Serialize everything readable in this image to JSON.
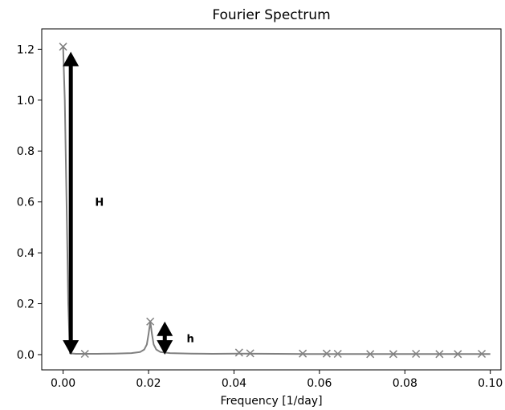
{
  "chart_data": {
    "type": "line",
    "title": "Fourier Spectrum",
    "xlabel": "Frequency [1/day]",
    "ylabel": "",
    "xlim": [
      -0.005,
      0.1025
    ],
    "ylim": [
      -0.06,
      1.28
    ],
    "x_ticks": [
      0.0,
      0.02,
      0.04,
      0.06,
      0.08,
      0.1
    ],
    "x_tick_labels": [
      "0.00",
      "0.02",
      "0.04",
      "0.06",
      "0.08",
      "0.10"
    ],
    "y_ticks": [
      0.0,
      0.2,
      0.4,
      0.6,
      0.8,
      1.0,
      1.2
    ],
    "y_tick_labels": [
      "0.0",
      "0.2",
      "0.4",
      "0.6",
      "0.8",
      "1.0",
      "1.2"
    ],
    "grid": false,
    "line_color": "#808080",
    "arrow_color": "#000000",
    "series": [
      {
        "values": [
          [
            0.0,
            1.21
          ],
          [
            0.0004,
            1.0
          ],
          [
            0.0008,
            0.6
          ],
          [
            0.0012,
            0.2
          ],
          [
            0.0016,
            0.005
          ],
          [
            0.003,
            0.003
          ],
          [
            0.0052,
            0.003
          ],
          [
            0.008,
            0.003
          ],
          [
            0.012,
            0.004
          ],
          [
            0.016,
            0.006
          ],
          [
            0.018,
            0.01
          ],
          [
            0.019,
            0.02
          ],
          [
            0.0196,
            0.04
          ],
          [
            0.02,
            0.08
          ],
          [
            0.0204,
            0.13
          ],
          [
            0.0208,
            0.08
          ],
          [
            0.0212,
            0.04
          ],
          [
            0.0218,
            0.02
          ],
          [
            0.0228,
            0.01
          ],
          [
            0.025,
            0.006
          ],
          [
            0.03,
            0.004
          ],
          [
            0.035,
            0.003
          ],
          [
            0.041,
            0.004
          ],
          [
            0.05,
            0.003
          ],
          [
            0.06,
            0.002
          ],
          [
            0.07,
            0.002
          ],
          [
            0.08,
            0.002
          ],
          [
            0.09,
            0.002
          ],
          [
            0.1,
            0.002
          ]
        ]
      }
    ],
    "peak_markers": [
      [
        0.0,
        1.21
      ],
      [
        0.0051,
        0.003
      ],
      [
        0.0204,
        0.13
      ],
      [
        0.0412,
        0.008
      ],
      [
        0.0438,
        0.005
      ],
      [
        0.0561,
        0.004
      ],
      [
        0.0617,
        0.004
      ],
      [
        0.0643,
        0.003
      ],
      [
        0.0719,
        0.002
      ],
      [
        0.0773,
        0.002
      ],
      [
        0.0826,
        0.003
      ],
      [
        0.0881,
        0.002
      ],
      [
        0.0924,
        0.002
      ],
      [
        0.098,
        0.003
      ]
    ],
    "annotations": [
      {
        "text": "H",
        "x0": 0.0018,
        "y0": 0.0,
        "y1": 1.19,
        "label_x": 0.0085,
        "label_y": 0.6
      },
      {
        "text": "h",
        "x0": 0.0238,
        "y0": 0.0,
        "y1": 0.13,
        "label_x": 0.0298,
        "label_y": 0.065
      }
    ]
  }
}
